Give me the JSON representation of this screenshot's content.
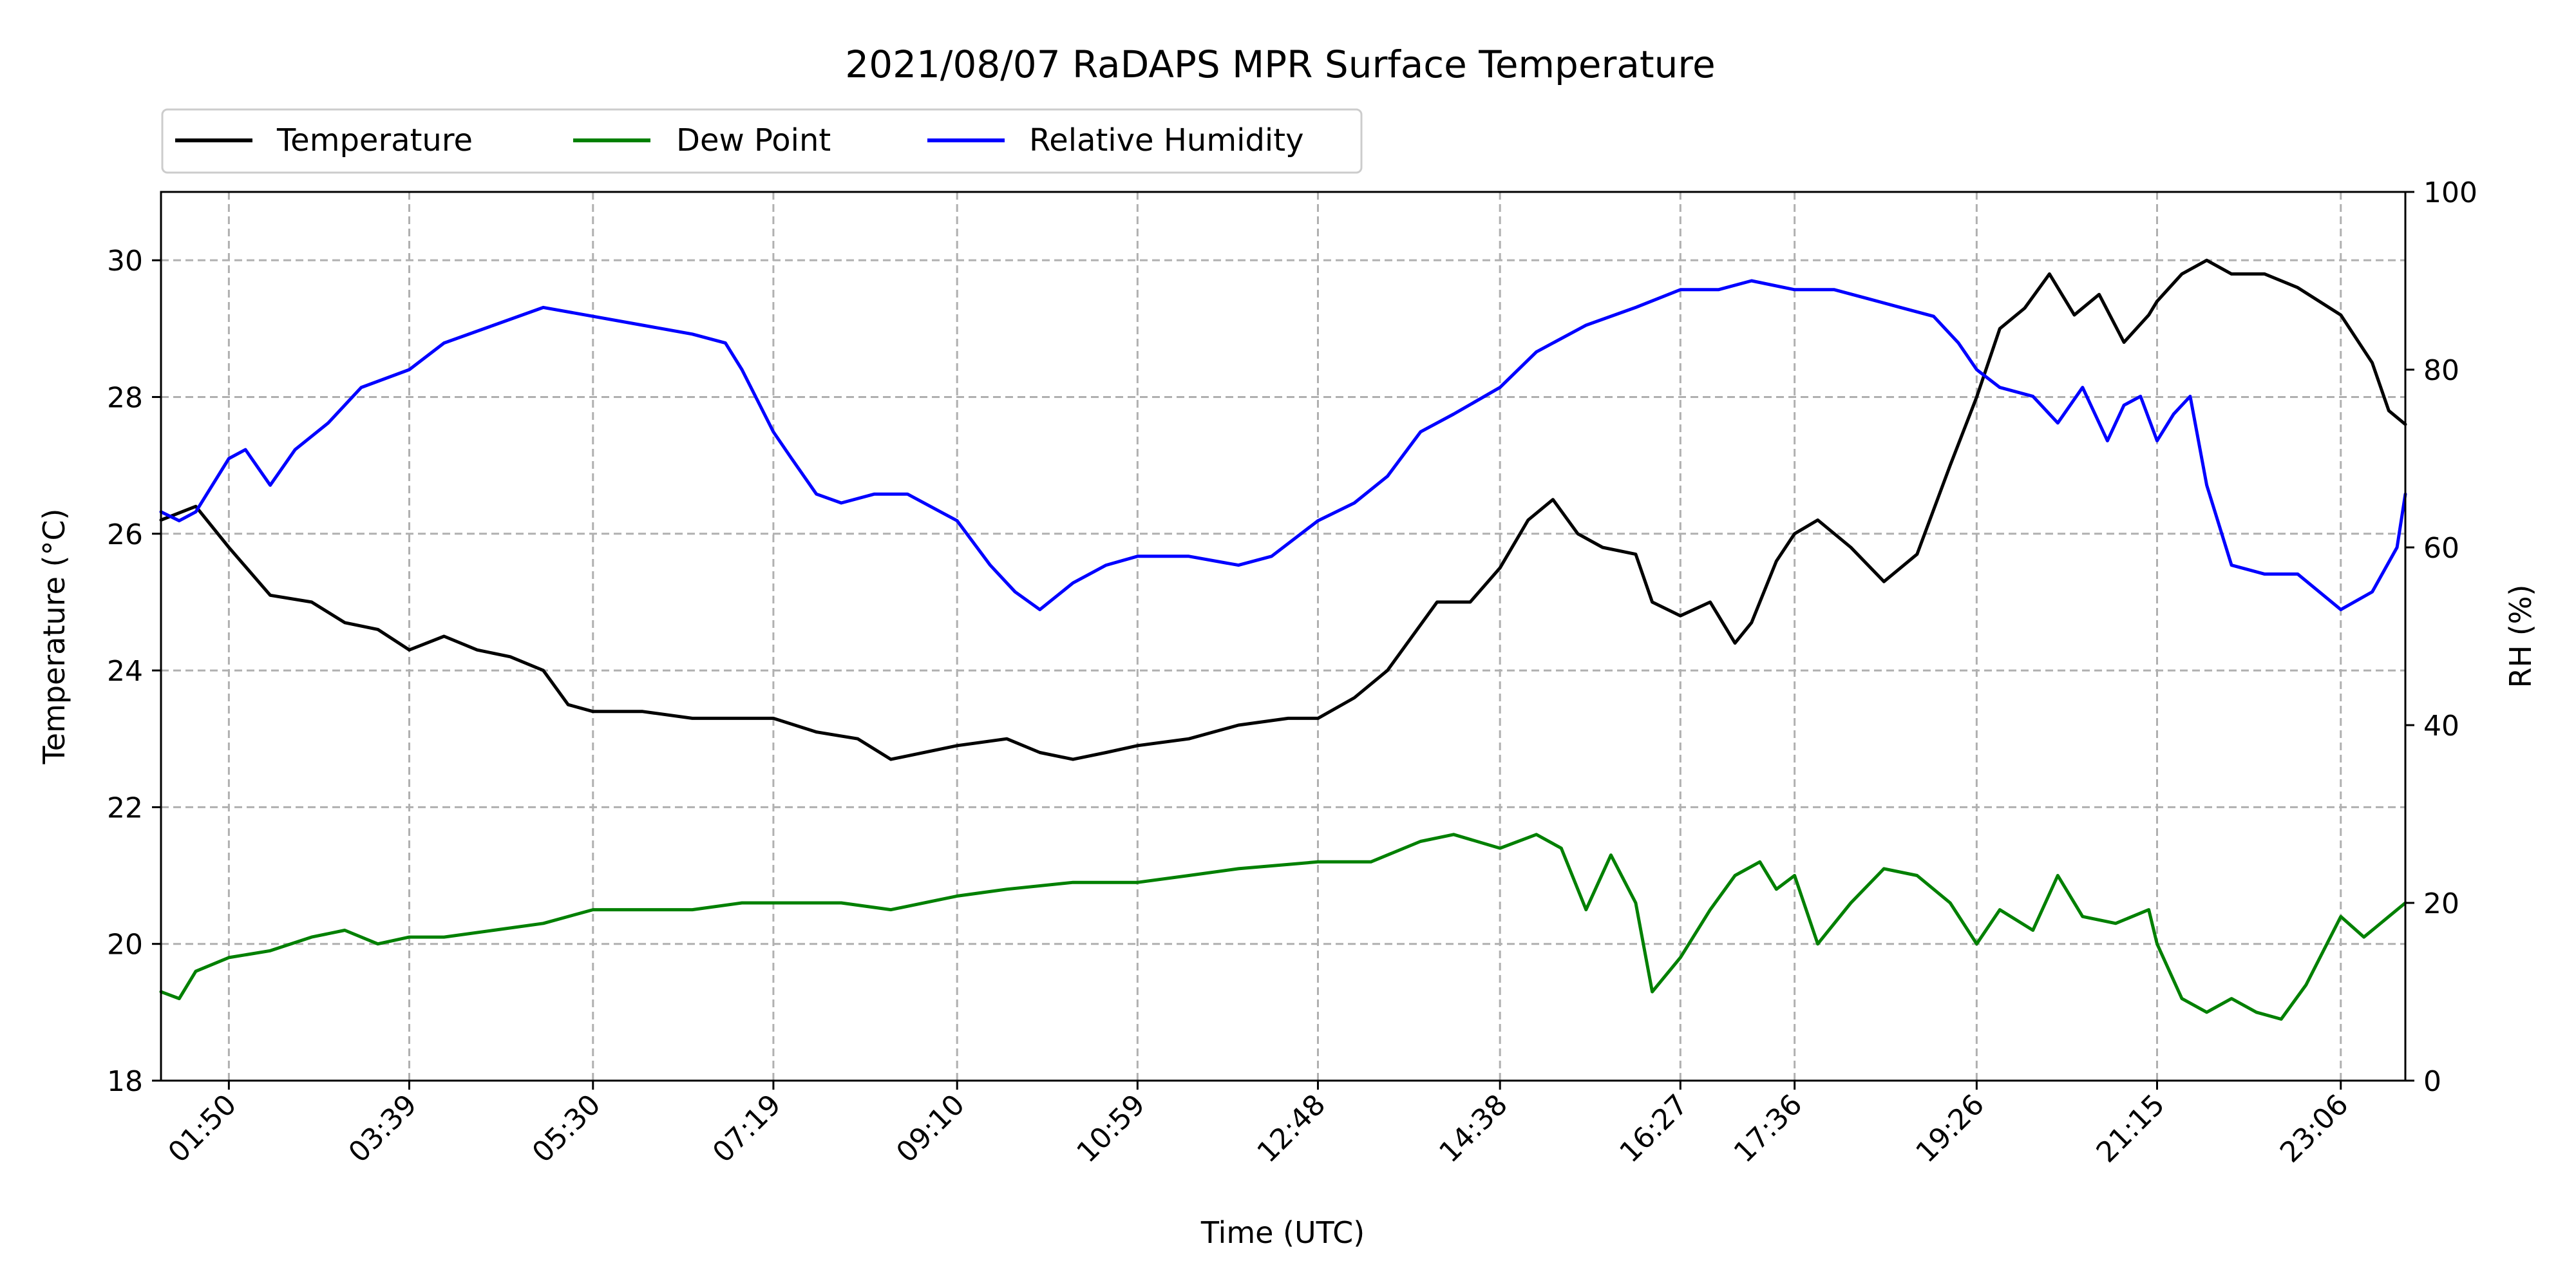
{
  "chart_data": {
    "type": "line",
    "title": "2021/08/07 RaDAPS MPR Surface Temperature",
    "xlabel": "Time (UTC)",
    "ylabel_left": "Temperature ($^\\circ$C)",
    "ylabel_left_display": "Temperature (°C)",
    "ylabel_right": "RH (%)",
    "xlim": [
      "01:09",
      "23:45"
    ],
    "ylim_left": [
      18,
      31
    ],
    "ylim_right": [
      0,
      100
    ],
    "x_ticks": [
      "01:50",
      "03:39",
      "05:30",
      "07:19",
      "09:10",
      "10:59",
      "12:48",
      "14:38",
      "16:27",
      "17:36",
      "19:26",
      "21:15",
      "23:06"
    ],
    "y_ticks_left": [
      18,
      20,
      22,
      24,
      26,
      28,
      30
    ],
    "y_ticks_right": [
      0,
      20,
      40,
      60,
      80,
      100
    ],
    "grid": true,
    "legend_placement": "above-left",
    "series": [
      {
        "name": "Temperature",
        "axis": "left",
        "color": "#000000",
        "x": [
          "01:09",
          "01:30",
          "01:50",
          "02:15",
          "02:40",
          "03:00",
          "03:20",
          "03:39",
          "04:00",
          "04:20",
          "04:40",
          "05:00",
          "05:15",
          "05:30",
          "06:00",
          "06:30",
          "06:50",
          "07:19",
          "07:45",
          "08:10",
          "08:30",
          "09:10",
          "09:40",
          "10:00",
          "10:20",
          "10:40",
          "10:59",
          "11:30",
          "12:00",
          "12:30",
          "12:48",
          "13:10",
          "13:30",
          "14:00",
          "14:20",
          "14:38",
          "14:55",
          "15:10",
          "15:25",
          "15:40",
          "16:00",
          "16:10",
          "16:27",
          "16:45",
          "17:00",
          "17:10",
          "17:25",
          "17:36",
          "17:50",
          "18:10",
          "18:30",
          "18:50",
          "19:10",
          "19:26",
          "19:40",
          "19:55",
          "20:10",
          "20:25",
          "20:40",
          "20:55",
          "21:10",
          "21:15",
          "21:30",
          "21:45",
          "22:00",
          "22:20",
          "22:40",
          "23:06",
          "23:25",
          "23:35",
          "23:45"
        ],
        "y": [
          26.2,
          26.4,
          25.8,
          25.1,
          25.0,
          24.7,
          24.6,
          24.3,
          24.5,
          24.3,
          24.2,
          24.0,
          23.5,
          23.4,
          23.4,
          23.3,
          23.3,
          23.3,
          23.1,
          23.0,
          22.7,
          22.9,
          23.0,
          22.8,
          22.7,
          22.8,
          22.9,
          23.0,
          23.2,
          23.3,
          23.3,
          23.6,
          24.0,
          25.0,
          25.0,
          25.5,
          26.2,
          26.5,
          26.0,
          25.8,
          25.7,
          25.0,
          24.8,
          25.0,
          24.4,
          24.7,
          25.6,
          26.0,
          26.2,
          25.8,
          25.3,
          25.7,
          27.0,
          28.0,
          29.0,
          29.3,
          29.8,
          29.2,
          29.5,
          28.8,
          29.2,
          29.4,
          29.8,
          30.0,
          29.8,
          29.8,
          29.6,
          29.2,
          28.5,
          27.8,
          27.6
        ]
      },
      {
        "name": "Dew Point",
        "axis": "left",
        "color": "#008000",
        "x": [
          "01:09",
          "01:20",
          "01:30",
          "01:50",
          "02:15",
          "02:40",
          "03:00",
          "03:20",
          "03:39",
          "04:00",
          "04:30",
          "05:00",
          "05:30",
          "06:00",
          "06:30",
          "07:00",
          "07:30",
          "08:00",
          "08:30",
          "09:10",
          "09:40",
          "10:20",
          "10:59",
          "11:30",
          "12:00",
          "12:48",
          "13:20",
          "13:50",
          "14:10",
          "14:38",
          "15:00",
          "15:15",
          "15:30",
          "15:45",
          "16:00",
          "16:10",
          "16:27",
          "16:45",
          "17:00",
          "17:15",
          "17:25",
          "17:36",
          "17:50",
          "18:10",
          "18:30",
          "18:50",
          "19:10",
          "19:26",
          "19:40",
          "20:00",
          "20:15",
          "20:30",
          "20:50",
          "21:10",
          "21:15",
          "21:30",
          "21:45",
          "22:00",
          "22:15",
          "22:30",
          "22:45",
          "23:06",
          "23:20",
          "23:35",
          "23:45"
        ],
        "y": [
          19.3,
          19.2,
          19.6,
          19.8,
          19.9,
          20.1,
          20.2,
          20.0,
          20.1,
          20.1,
          20.2,
          20.3,
          20.5,
          20.5,
          20.5,
          20.6,
          20.6,
          20.6,
          20.5,
          20.7,
          20.8,
          20.9,
          20.9,
          21.0,
          21.1,
          21.2,
          21.2,
          21.5,
          21.6,
          21.4,
          21.6,
          21.4,
          20.5,
          21.3,
          20.6,
          19.3,
          19.8,
          20.5,
          21.0,
          21.2,
          20.8,
          21.0,
          20.0,
          20.6,
          21.1,
          21.0,
          20.6,
          20.0,
          20.5,
          20.2,
          21.0,
          20.4,
          20.3,
          20.5,
          20.0,
          19.2,
          19.0,
          19.2,
          19.0,
          18.9,
          19.4,
          20.4,
          20.1,
          20.4,
          20.6
        ]
      },
      {
        "name": "Relative Humidity",
        "axis": "right",
        "color": "#0000ff",
        "x": [
          "01:09",
          "01:20",
          "01:30",
          "01:50",
          "02:00",
          "02:15",
          "02:30",
          "02:50",
          "03:10",
          "03:39",
          "04:00",
          "04:30",
          "05:00",
          "05:30",
          "06:00",
          "06:30",
          "06:50",
          "07:00",
          "07:19",
          "07:30",
          "07:45",
          "08:00",
          "08:20",
          "08:40",
          "09:00",
          "09:10",
          "09:30",
          "09:45",
          "10:00",
          "10:20",
          "10:40",
          "10:59",
          "11:30",
          "12:00",
          "12:20",
          "12:48",
          "13:10",
          "13:30",
          "13:50",
          "14:10",
          "14:38",
          "15:00",
          "15:30",
          "16:00",
          "16:27",
          "16:50",
          "17:10",
          "17:36",
          "18:00",
          "18:20",
          "18:40",
          "19:00",
          "19:15",
          "19:26",
          "19:40",
          "20:00",
          "20:15",
          "20:30",
          "20:45",
          "20:55",
          "21:05",
          "21:15",
          "21:25",
          "21:35",
          "21:45",
          "22:00",
          "22:20",
          "22:40",
          "23:06",
          "23:25",
          "23:40",
          "23:45"
        ],
        "y": [
          64,
          63,
          64,
          70,
          71,
          67,
          71,
          74,
          78,
          80,
          83,
          85,
          87,
          86,
          85,
          84,
          83,
          80,
          73,
          70,
          66,
          65,
          66,
          66,
          64,
          63,
          58,
          55,
          53,
          56,
          58,
          59,
          59,
          58,
          59,
          63,
          65,
          68,
          73,
          75,
          78,
          82,
          85,
          87,
          89,
          89,
          90,
          89,
          89,
          88,
          87,
          86,
          83,
          80,
          78,
          77,
          74,
          78,
          72,
          76,
          77,
          72,
          75,
          77,
          67,
          58,
          57,
          57,
          53,
          55,
          60,
          66
        ]
      }
    ]
  }
}
